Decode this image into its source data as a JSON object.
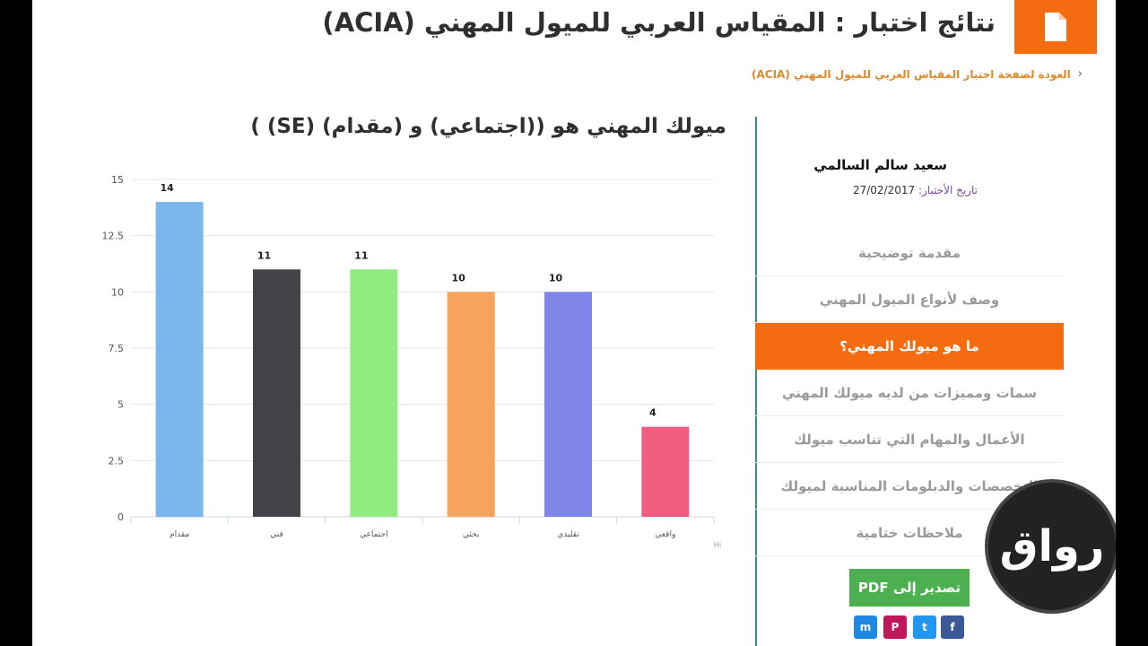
{
  "header": {
    "title": "نتائج اختبار : المقياس العربي للميول المهني (ACIA)",
    "icon": "document-icon",
    "back_link": "العودة لصفحة اختبار المقياس العربي للميول المهني (ACIA)"
  },
  "chart_title": "ميولك المهني هو ((اجتماعي) و (مقدام) (SE) )",
  "chart_data": {
    "type": "bar",
    "categories": [
      "مقدام",
      "فني",
      "اجتماعي",
      "بحثي",
      "تقليدي",
      "واقعي"
    ],
    "values": [
      14,
      11,
      11,
      10,
      10,
      4
    ],
    "colors": [
      "#7cb5ec",
      "#434348",
      "#90ed7d",
      "#f7a35c",
      "#8085e9",
      "#f15c80"
    ],
    "ylim": [
      0,
      15
    ],
    "yticks": [
      "0",
      "2.5",
      "5",
      "7.5",
      "10",
      "12.5",
      "15"
    ],
    "ytick_values": [
      0,
      2.5,
      5,
      7.5,
      10,
      12.5,
      15
    ],
    "credit": "Hi",
    "grid": true
  },
  "sidebar": {
    "user_name": "سعيد سالم السالمي",
    "date_label": "تاريخ الأختبار:",
    "date_value": "27/02/2017",
    "menu": [
      {
        "label": "مقدمة توضيحية",
        "active": false
      },
      {
        "label": "وصف لأنواع الميول المهني",
        "active": false
      },
      {
        "label": "ما هو ميولك المهني؟",
        "active": true
      },
      {
        "label": "سمات ومميزات من لديه ميولك المهني",
        "active": false
      },
      {
        "label": "الأعمال والمهام التي تناسب ميولك",
        "active": false
      },
      {
        "label": "التخصصات والدبلومات المناسبة لميولك",
        "active": false
      },
      {
        "label": "ملاحظات ختامية",
        "active": false
      }
    ],
    "export_label": "تصدير إلى PDF",
    "share": {
      "messenger": "m",
      "pinterest": "P",
      "twitter": "t",
      "facebook": "f"
    }
  },
  "watermark": "رواق"
}
